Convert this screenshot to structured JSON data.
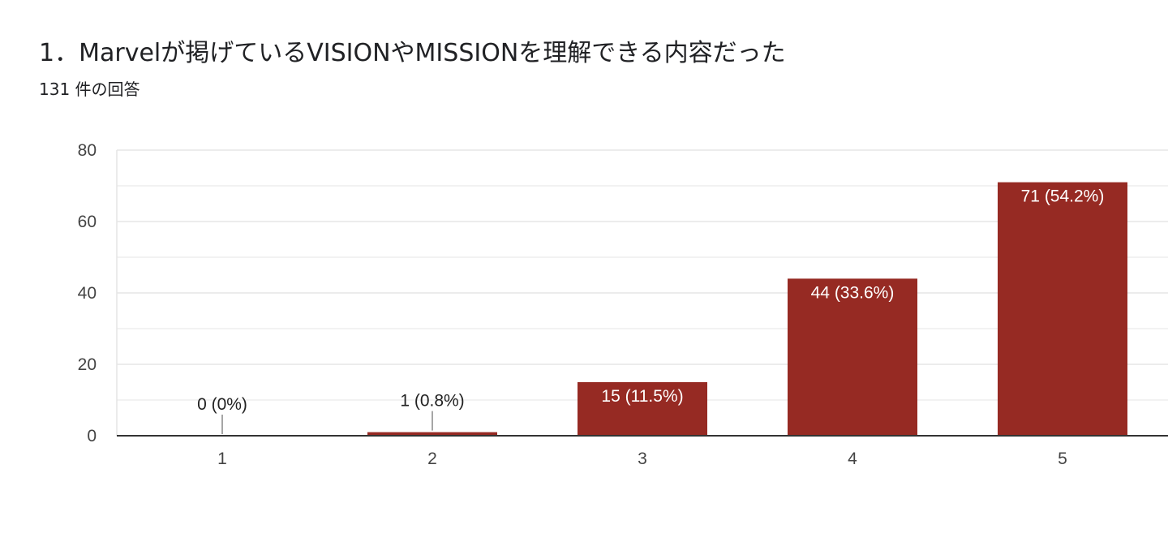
{
  "question": {
    "title": "1．Marvelが掲げているVISIONやMISSIONを理解できる内容だった",
    "response_count": "131 件の回答"
  },
  "colors": {
    "bar": "#962a23",
    "grid": "#e6e6e6",
    "axis": "#333333",
    "label_inside": "#ffffff",
    "label_outside": "#222222",
    "leader_line": "#888888"
  },
  "chart_data": {
    "type": "bar",
    "categories": [
      "1",
      "2",
      "3",
      "4",
      "5"
    ],
    "values": [
      0,
      1,
      15,
      44,
      71
    ],
    "data_labels": [
      "0 (0%)",
      "1 (0.8%)",
      "15 (11.5%)",
      "44 (33.6%)",
      "71 (54.2%)"
    ],
    "y_ticks": [
      "0",
      "20",
      "40",
      "60",
      "80"
    ],
    "ylim": [
      0,
      80
    ],
    "minor_grid_step": 10,
    "title": "",
    "xlabel": "",
    "ylabel": "",
    "grid": true,
    "legend": false
  }
}
